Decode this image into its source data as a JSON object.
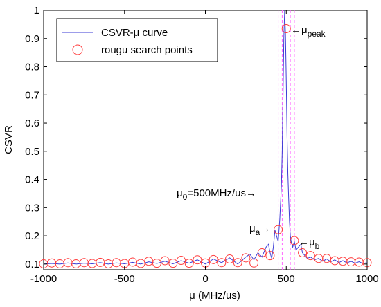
{
  "chart_data": {
    "type": "line",
    "xlabel": "μ (MHz/us)",
    "ylabel": "CSVR",
    "xlim": [
      -1000,
      1000
    ],
    "ylim": [
      0.08,
      1.0
    ],
    "x_ticks": [
      -1000,
      -500,
      0,
      500,
      1000
    ],
    "x_tick_labels": [
      "-1000",
      "-500",
      "0",
      "500",
      "1000"
    ],
    "y_ticks": [
      0.1,
      0.2,
      0.3,
      0.4,
      0.5,
      0.6,
      0.7,
      0.8,
      0.9,
      1.0
    ],
    "y_tick_labels": [
      "0.1",
      "0.2",
      "0.3",
      "0.4",
      "0.5",
      "0.6",
      "0.7",
      "0.8",
      "0.9",
      "1"
    ],
    "grid": false,
    "legend_position": "top-left",
    "colors": {
      "curve": "#3b3bd6",
      "points": "#ff3b3b",
      "guides": "#ff66ff",
      "axes": "#000000"
    },
    "series": [
      {
        "name": "CSVR-μ curve",
        "type": "line",
        "x": [
          -1000,
          -950,
          -900,
          -850,
          -800,
          -750,
          -700,
          -650,
          -600,
          -550,
          -500,
          -450,
          -400,
          -350,
          -300,
          -250,
          -200,
          -150,
          -100,
          -50,
          0,
          50,
          100,
          150,
          200,
          250,
          275,
          300,
          325,
          350,
          375,
          390,
          400,
          410,
          420,
          430,
          440,
          450,
          460,
          470,
          475,
          480,
          485,
          490,
          495,
          500,
          505,
          510,
          515,
          520,
          525,
          530,
          540,
          550,
          560,
          575,
          590,
          600,
          615,
          630,
          650,
          675,
          700,
          725,
          750,
          775,
          800,
          825,
          850,
          875,
          900,
          925,
          950,
          975,
          1000
        ],
        "values": [
          0.1,
          0.102,
          0.1,
          0.104,
          0.1,
          0.103,
          0.101,
          0.105,
          0.1,
          0.104,
          0.101,
          0.106,
          0.1,
          0.108,
          0.102,
          0.11,
          0.101,
          0.112,
          0.103,
          0.115,
          0.1,
          0.118,
          0.105,
          0.122,
          0.1,
          0.125,
          0.135,
          0.115,
          0.14,
          0.125,
          0.16,
          0.17,
          0.14,
          0.12,
          0.16,
          0.22,
          0.2,
          0.18,
          0.26,
          0.38,
          0.5,
          0.7,
          0.9,
          1.0,
          0.92,
          0.75,
          0.55,
          0.42,
          0.33,
          0.25,
          0.2,
          0.18,
          0.16,
          0.18,
          0.15,
          0.16,
          0.17,
          0.14,
          0.13,
          0.12,
          0.125,
          0.115,
          0.12,
          0.11,
          0.118,
          0.108,
          0.115,
          0.105,
          0.112,
          0.104,
          0.11,
          0.103,
          0.108,
          0.102,
          0.105
        ]
      },
      {
        "name": "rougu search points",
        "type": "scatter",
        "x": [
          -1000,
          -950,
          -900,
          -850,
          -800,
          -750,
          -700,
          -650,
          -600,
          -550,
          -500,
          -450,
          -400,
          -350,
          -300,
          -250,
          -200,
          -150,
          -100,
          -50,
          0,
          50,
          100,
          150,
          200,
          250,
          300,
          350,
          400,
          450,
          500,
          550,
          600,
          650,
          700,
          750,
          800,
          850,
          900,
          950,
          1000
        ],
        "values": [
          0.101,
          0.104,
          0.101,
          0.105,
          0.101,
          0.105,
          0.102,
          0.106,
          0.101,
          0.105,
          0.102,
          0.107,
          0.102,
          0.11,
          0.103,
          0.112,
          0.103,
          0.113,
          0.103,
          0.115,
          0.104,
          0.116,
          0.105,
          0.118,
          0.105,
          0.122,
          0.104,
          0.14,
          0.13,
          0.222,
          0.935,
          0.183,
          0.14,
          0.13,
          0.12,
          0.12,
          0.112,
          0.11,
          0.108,
          0.107,
          0.105
        ]
      }
    ],
    "vertical_guides": [
      450,
      475,
      525,
      550
    ],
    "annotations": [
      {
        "id": "peak",
        "text_main": "μ",
        "text_sub": "peak",
        "arrow": "←"
      },
      {
        "id": "mu0",
        "text_main": "μ",
        "text_sub": "0",
        "text_rest": "=500MHz/us",
        "arrow": "→"
      },
      {
        "id": "mua",
        "text_main": "μ",
        "text_sub": "a",
        "arrow": "→"
      },
      {
        "id": "mub",
        "text_main": "μ",
        "text_sub": "b",
        "arrow": "←"
      }
    ]
  }
}
